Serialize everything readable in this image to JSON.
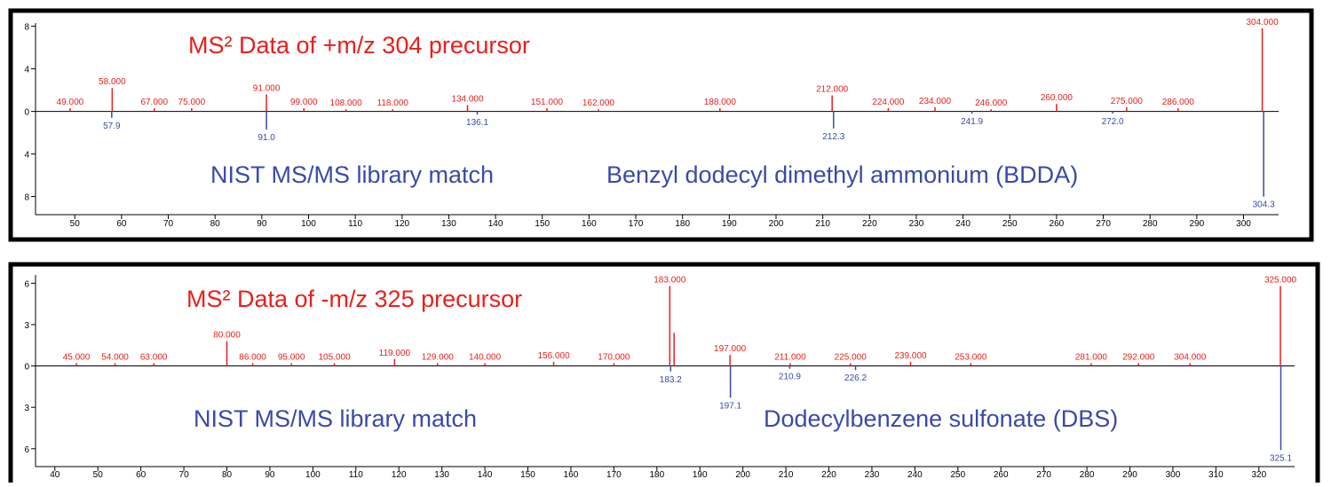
{
  "chart_data": [
    {
      "type": "stem",
      "title": "MS² Data of +m/z 304 precursor",
      "annotations": [
        "NIST MS/MS library match",
        "Benzyl dodecyl dimethyl ammonium (BDDA)"
      ],
      "xlim": [
        41.6,
        307.5
      ],
      "xticks": [
        50,
        60,
        70,
        80,
        90,
        100,
        110,
        120,
        130,
        140,
        150,
        160,
        170,
        180,
        190,
        200,
        210,
        220,
        230,
        240,
        250,
        260,
        270,
        280,
        290,
        300
      ],
      "ylim": [
        -9.7,
        8.3
      ],
      "yticks": [
        {
          "value": -8,
          "label": "8"
        },
        {
          "value": -4,
          "label": "4"
        },
        0,
        4,
        8
      ],
      "series": [
        {
          "color": "#e8201c",
          "x": [
            49,
            58,
            67,
            75,
            91,
            99,
            108,
            118,
            134,
            151,
            162,
            188,
            212,
            224,
            234,
            246,
            260,
            275,
            286,
            304
          ],
          "x_labels": [
            "49.000",
            "58.000",
            "67.000",
            "75.000",
            "91.000",
            "99.000",
            "108.000",
            "118.000",
            "134.000",
            "151.000",
            "162.000",
            "188.000",
            "212.000",
            "224.000",
            "234.000",
            "246.000",
            "260.000",
            "275.000",
            "286.000",
            "304.000"
          ],
          "values": [
            0.3,
            2.2,
            0.3,
            0.3,
            1.6,
            0.3,
            0.2,
            0.2,
            0.6,
            0.3,
            0.2,
            0.3,
            1.5,
            0.3,
            0.4,
            0.2,
            0.7,
            0.4,
            0.3,
            7.8
          ]
        },
        {
          "color": "#3a4aa8",
          "x": [
            57.9,
            91.0,
            136.1,
            212.3,
            241.9,
            272.0,
            304.3
          ],
          "x_labels": [
            "57.9",
            "91.0",
            "136.1",
            "212.3",
            "241.9",
            "272.0",
            "304.3"
          ],
          "values": [
            -0.6,
            -1.7,
            -0.3,
            -1.6,
            -0.2,
            -0.2,
            -8
          ]
        }
      ]
    },
    {
      "type": "stem",
      "title": "MS² Data of -m/z 325 precursor",
      "annotations": [
        "NIST MS/MS library match",
        "Dodecylbenzene sulfonate (DBS)"
      ],
      "xlim": [
        35.5,
        328.3
      ],
      "xticks": [
        40,
        50,
        60,
        70,
        80,
        90,
        100,
        110,
        120,
        130,
        140,
        150,
        160,
        170,
        180,
        190,
        200,
        210,
        220,
        230,
        240,
        250,
        260,
        270,
        280,
        290,
        300,
        310,
        320
      ],
      "ylim": [
        -7.3,
        6.6
      ],
      "yticks": [
        {
          "value": -6,
          "label": "6"
        },
        {
          "value": -3,
          "label": "3"
        },
        0,
        3,
        6
      ],
      "series": [
        {
          "color": "#e8201c",
          "x": [
            45,
            54,
            63,
            80,
            86,
            95,
            105,
            119,
            129,
            140,
            156,
            170,
            183,
            184,
            197,
            211,
            225,
            239,
            253,
            281,
            292,
            304,
            325
          ],
          "x_labels": [
            "45.000",
            "54.000",
            "63.000",
            "80.000",
            "86.000",
            "95.000",
            "105.000",
            "119.000",
            "129.000",
            "140.000",
            "156.000",
            "170.000",
            "183.000",
            null,
            "197.000",
            "211.000",
            "225.000",
            "239.000",
            "253.000",
            "281.000",
            "292.000",
            "304.000",
            "325.000"
          ],
          "values": [
            0.2,
            0.2,
            0.2,
            1.8,
            0.2,
            0.2,
            0.2,
            0.5,
            0.2,
            0.2,
            0.3,
            0.2,
            5.8,
            2.4,
            0.8,
            0.2,
            0.2,
            0.3,
            0.2,
            0.2,
            0.2,
            0.2,
            5.8
          ]
        },
        {
          "color": "#3a4aa8",
          "x": [
            183.2,
            197.1,
            210.9,
            226.2,
            325.1
          ],
          "x_labels": [
            "183.2",
            "197.1",
            "210.9",
            "226.2",
            "325.1"
          ],
          "values": [
            -0.4,
            -2.3,
            -0.2,
            -0.3,
            -6.1
          ]
        }
      ]
    }
  ]
}
